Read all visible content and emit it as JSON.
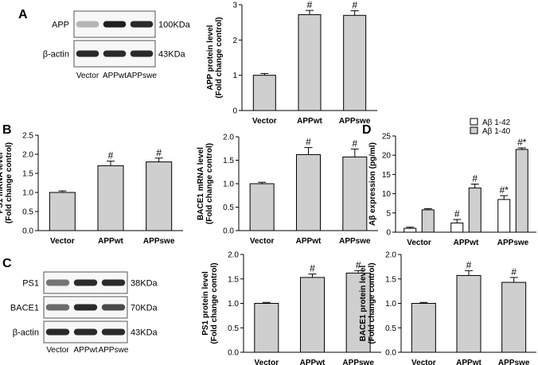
{
  "panel_letters": {
    "A": "A",
    "B": "B",
    "C": "C",
    "D": "D"
  },
  "blot_A": {
    "rows": [
      {
        "label": "APP",
        "size": "100KDa",
        "intensity": [
          0.25,
          0.95,
          0.9
        ]
      },
      {
        "label": "β-actin",
        "size": "43KDa",
        "intensity": [
          0.9,
          0.9,
          0.9
        ]
      }
    ],
    "lanes": [
      "Vector",
      "APPwt",
      "APPswe"
    ]
  },
  "blot_C": {
    "rows": [
      {
        "label": "PS1",
        "size": "38KDa",
        "intensity": [
          0.55,
          0.9,
          0.9
        ]
      },
      {
        "label": "BACE1",
        "size": "70KDa",
        "intensity": [
          0.6,
          0.9,
          0.75
        ]
      },
      {
        "label": "β-actin",
        "size": "43KDa",
        "intensity": [
          0.9,
          0.9,
          0.9
        ]
      }
    ],
    "lanes": [
      "Vector",
      "APPwt",
      "APPswe"
    ]
  },
  "colors": {
    "bar_fill": "#cfcfcf",
    "bar_fill_open": "#ffffff",
    "stroke": "#000000"
  },
  "chart_data": [
    {
      "id": "A-app-protein",
      "type": "bar",
      "categories": [
        "Vector",
        "APPwt",
        "APPswe"
      ],
      "values": [
        1.0,
        2.72,
        2.7
      ],
      "errors": [
        0.05,
        0.12,
        0.13
      ],
      "annotations": [
        "",
        "#",
        "#"
      ],
      "ylabel": "APP protein level\n(Fold change control)",
      "ylim": [
        0,
        3
      ],
      "yticks": [
        0,
        1,
        2,
        3
      ]
    },
    {
      "id": "B-ps1-mrna",
      "type": "bar",
      "categories": [
        "Vector",
        "APPwt",
        "APPswe"
      ],
      "values": [
        1.0,
        1.7,
        1.8
      ],
      "errors": [
        0.04,
        0.12,
        0.1
      ],
      "annotations": [
        "",
        "#",
        "#"
      ],
      "ylabel": "PS1 mRNA level\n(Fold change control)",
      "ylim": [
        0,
        2.5
      ],
      "yticks": [
        0.0,
        0.5,
        1.0,
        1.5,
        2.0,
        2.5
      ]
    },
    {
      "id": "B-bace1-mrna",
      "type": "bar",
      "categories": [
        "Vector",
        "APPwt",
        "APPswe"
      ],
      "values": [
        1.0,
        1.62,
        1.57
      ],
      "errors": [
        0.03,
        0.15,
        0.17
      ],
      "annotations": [
        "",
        "#",
        "#"
      ],
      "ylabel": "BACE1 mRNA level\n(Fold change control)",
      "ylim": [
        0,
        2.0
      ],
      "yticks": [
        0.0,
        0.5,
        1.0,
        1.5,
        2.0
      ]
    },
    {
      "id": "D-abeta",
      "type": "bar",
      "categories": [
        "Vector",
        "APPwt",
        "APPswe"
      ],
      "series": [
        {
          "name": "Aβ 1-42",
          "values": [
            1.0,
            2.4,
            8.5
          ],
          "errors": [
            0.3,
            0.9,
            1.0
          ],
          "annotations": [
            "",
            "#",
            "#*"
          ]
        },
        {
          "name": "Aβ 1-40",
          "values": [
            5.8,
            11.5,
            21.5
          ],
          "errors": [
            0.3,
            1.0,
            0.4
          ],
          "annotations": [
            "",
            "#",
            "#*"
          ]
        }
      ],
      "ylabel": "Aβ expression (pg/ml)",
      "ylim": [
        0,
        25
      ],
      "yticks": [
        0,
        5,
        10,
        15,
        20,
        25
      ],
      "legend_position": "top-right"
    },
    {
      "id": "C-ps1-protein",
      "type": "bar",
      "categories": [
        "Vector",
        "APPwt",
        "APPswe"
      ],
      "values": [
        1.0,
        1.53,
        1.62
      ],
      "errors": [
        0.02,
        0.07,
        0.05
      ],
      "annotations": [
        "",
        "#",
        "#"
      ],
      "ylabel": "PS1 protein level\n(Fold change control)",
      "ylim": [
        0,
        2.0
      ],
      "yticks": [
        0.0,
        0.5,
        1.0,
        1.5,
        2.0
      ]
    },
    {
      "id": "C-bace1-protein",
      "type": "bar",
      "categories": [
        "Vector",
        "APPwt",
        "APPswe"
      ],
      "values": [
        1.0,
        1.57,
        1.43
      ],
      "errors": [
        0.02,
        0.1,
        0.1
      ],
      "annotations": [
        "",
        "#",
        "#"
      ],
      "ylabel": "BACE1 protein level\n(Fold change control)",
      "ylim": [
        0,
        2.0
      ],
      "yticks": [
        0.0,
        0.5,
        1.0,
        1.5,
        2.0
      ]
    }
  ]
}
